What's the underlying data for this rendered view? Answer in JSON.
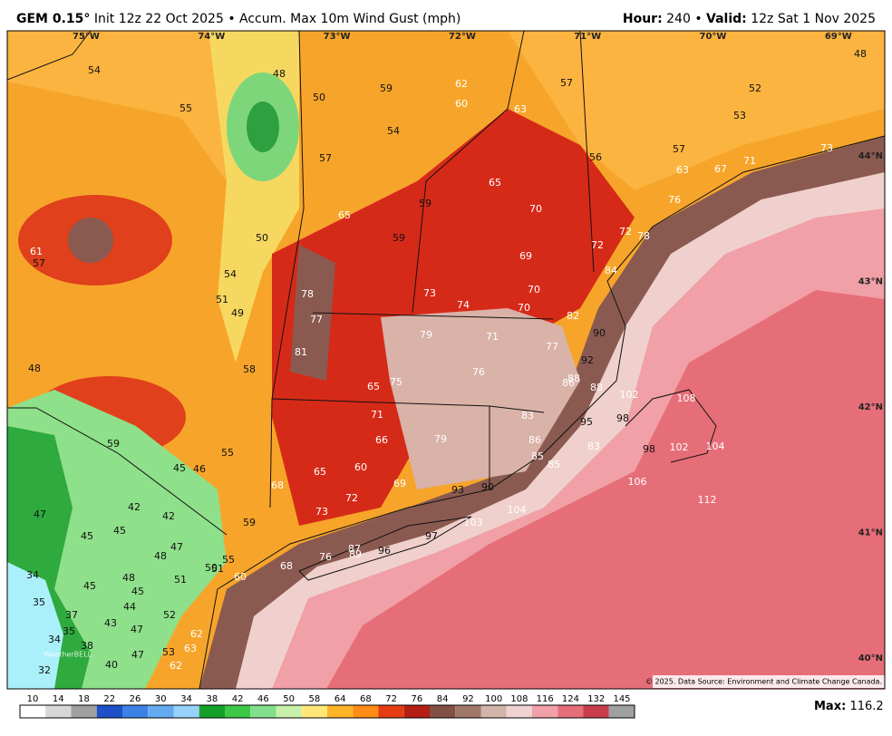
{
  "header": {
    "model": "GEM 0.15°",
    "description": "Init 12z 22 Oct 2025",
    "separator": "•",
    "field": "Accum. Max 10m Wind Gust (mph)",
    "hour_label": "Hour:",
    "hour": "240",
    "valid_label": "Valid:",
    "valid": "12z Sat 1 Nov 2025"
  },
  "longitudes": [
    "75°W",
    "74°W",
    "73°W",
    "72°W",
    "71°W",
    "70°W",
    "69°W"
  ],
  "latitudes": [
    "44°N",
    "43°N",
    "42°N",
    "41°N",
    "40°N"
  ],
  "map_labels": [
    54,
    55,
    48,
    50,
    59,
    62,
    60,
    63,
    57,
    52,
    53,
    48,
    54,
    57,
    56,
    57,
    63,
    67,
    71,
    73,
    65,
    70,
    76,
    59,
    65,
    50,
    59,
    72,
    72,
    78,
    69,
    84,
    61,
    57,
    54,
    51,
    49,
    78,
    73,
    74,
    70,
    70,
    82,
    77,
    79,
    71,
    77,
    90,
    81,
    76,
    92,
    88,
    86,
    88,
    48,
    58,
    65,
    75,
    102,
    108,
    71,
    83,
    95,
    98,
    66,
    79,
    86,
    83,
    85,
    85,
    98,
    102,
    104,
    59,
    55,
    45,
    46,
    65,
    60,
    106,
    68,
    69,
    93,
    90,
    42,
    42,
    47,
    72,
    112,
    104,
    73,
    103,
    45,
    45,
    59,
    97,
    47,
    48,
    87,
    89,
    96,
    76,
    55,
    51,
    68,
    48,
    51,
    50,
    60,
    45,
    45,
    35,
    44,
    37,
    52,
    43,
    47,
    35,
    34,
    62,
    38,
    63,
    53,
    47,
    40,
    62,
    32,
    34
  ],
  "colorbar": {
    "ticks": [
      10,
      14,
      18,
      22,
      26,
      30,
      34,
      38,
      42,
      46,
      50,
      58,
      64,
      68,
      72,
      76,
      84,
      92,
      100,
      108,
      116,
      124,
      132,
      145
    ],
    "colors": [
      "#ffffff",
      "#d8d8d8",
      "#a0a0a0",
      "#1e50c8",
      "#3c82e6",
      "#64aaf0",
      "#96d2fa",
      "#14a028",
      "#3cc846",
      "#82e08c",
      "#c8f0aa",
      "#ffe878",
      "#ffb428",
      "#ff8c14",
      "#e63c14",
      "#b41e14",
      "#825046",
      "#a07868",
      "#d2b4aa",
      "#f0d2d2",
      "#f0a0a8",
      "#e66e78",
      "#c83c4b",
      "#a0a0a0"
    ]
  },
  "max_label": "Max:",
  "max_value": "116.2",
  "copyright": "© 2025. Data Source: Environment and Climate Change Canada.",
  "watermark": "WeatherBELL"
}
